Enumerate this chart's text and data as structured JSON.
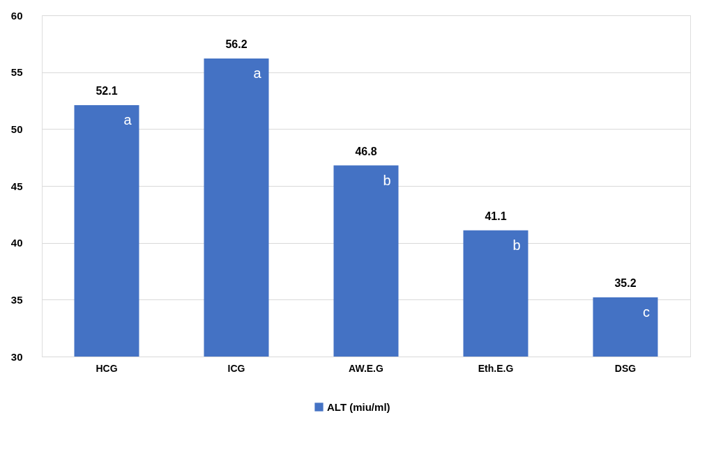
{
  "chart_data": {
    "type": "bar",
    "categories": [
      "HCG",
      "ICG",
      "AW.E.G",
      "Eth.E.G",
      "DSG"
    ],
    "series": [
      {
        "name": "ALT (miu/ml)",
        "color": "#4472c4",
        "values": [
          52.1,
          56.2,
          46.8,
          41.1,
          35.2
        ]
      }
    ],
    "ylim": [
      30,
      60
    ],
    "yticks": [
      30,
      35,
      40,
      45,
      50,
      55,
      60
    ],
    "grid": "y",
    "legend": "bottom",
    "data_labels": true,
    "annotations": [
      "a",
      "a",
      "b",
      "b",
      "c"
    ]
  }
}
